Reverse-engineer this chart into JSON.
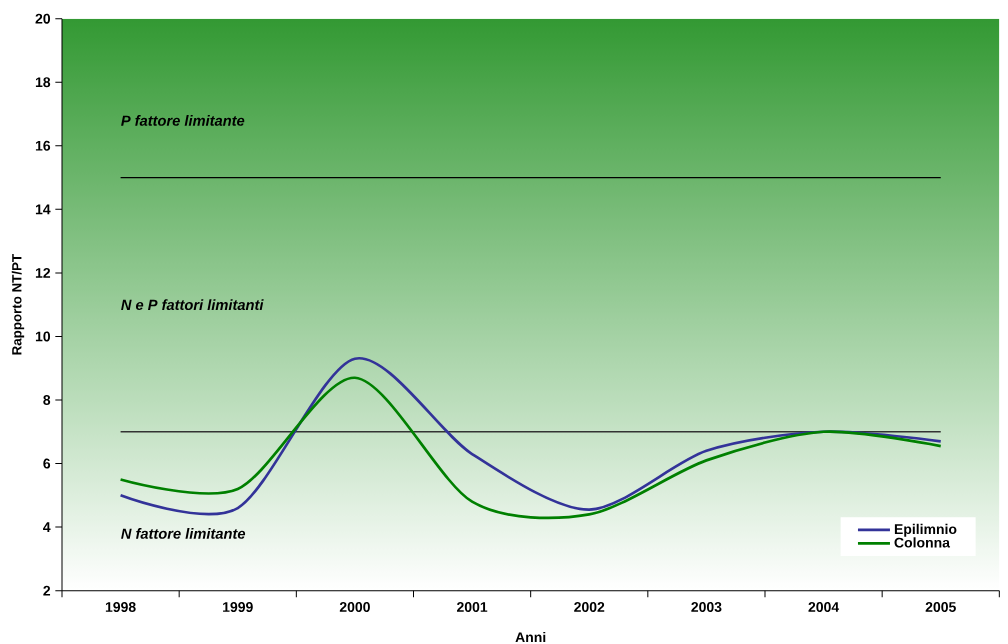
{
  "chart_data": {
    "type": "line",
    "xlabel": "Anni",
    "ylabel": "Rapporto NT/PT",
    "categories": [
      "1998",
      "1999",
      "2000",
      "2001",
      "2002",
      "2003",
      "2004",
      "2005"
    ],
    "series": [
      {
        "name": "Epilimnio",
        "color": "#333399",
        "values": [
          5.0,
          4.6,
          9.3,
          6.3,
          4.55,
          6.4,
          7.0,
          6.7
        ]
      },
      {
        "name": "Colonna",
        "color": "#008000",
        "values": [
          5.5,
          5.2,
          8.7,
          4.8,
          4.4,
          6.1,
          7.0,
          6.55
        ]
      }
    ],
    "ylim": [
      2,
      20
    ],
    "yticks": [
      2,
      4,
      6,
      8,
      10,
      12,
      14,
      16,
      18,
      20
    ],
    "ref_lines": [
      {
        "axis": "y",
        "value": 15,
        "color": "#000000"
      },
      {
        "axis": "y",
        "value": 7,
        "color": "#333333"
      }
    ],
    "annotations": [
      "P fattore limitante",
      "N e P fattori limitanti",
      "N fattore limitante"
    ],
    "legend": "bottom right",
    "grid": false,
    "marker": "none",
    "line_style": "solid"
  }
}
